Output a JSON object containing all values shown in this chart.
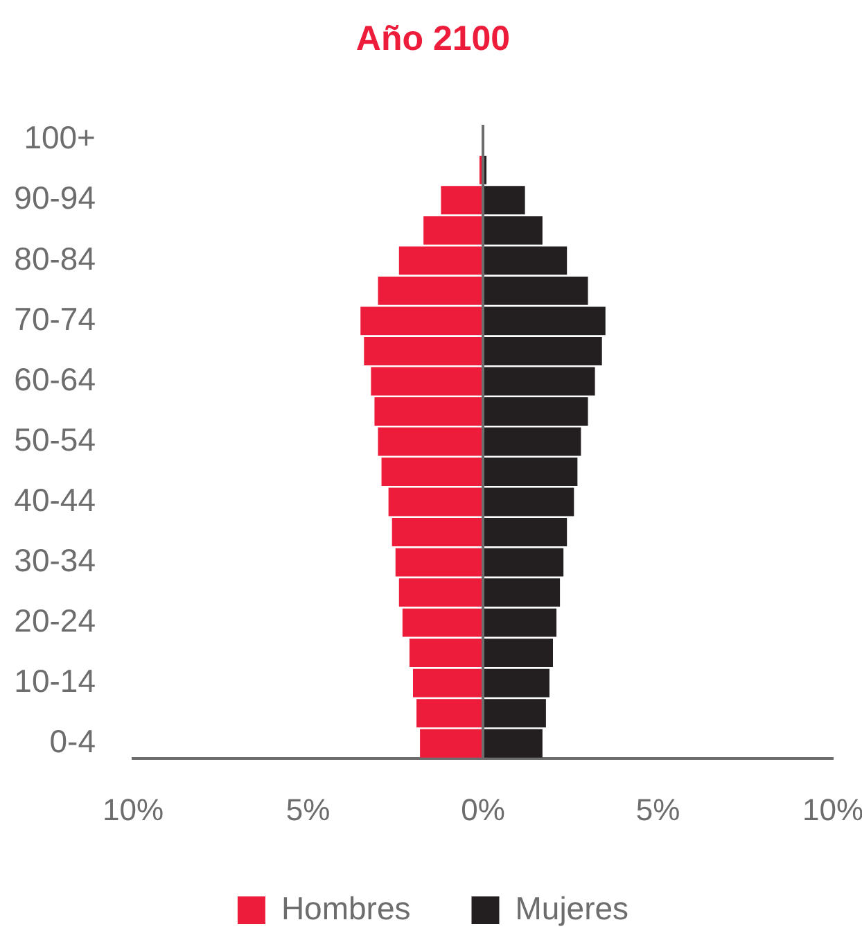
{
  "chart_data": {
    "type": "bar",
    "orientation": "horizontal",
    "stacked": true,
    "title": "Año 2100",
    "categories": [
      "100+",
      null,
      "90-94",
      null,
      "80-84",
      null,
      "70-74",
      null,
      "60-64",
      null,
      "50-54",
      null,
      "40-44",
      null,
      "30-34",
      null,
      "20-24",
      null,
      "10-14",
      null,
      "0-4"
    ],
    "series": [
      {
        "name": "Hombres",
        "color": "#ed1c3a",
        "values": [
          0,
          -0.1,
          -1.2,
          -1.7,
          -2.4,
          -3.0,
          -3.5,
          -3.4,
          -3.2,
          -3.1,
          -3.0,
          -2.9,
          -2.7,
          -2.6,
          -2.5,
          -2.4,
          -2.3,
          -2.1,
          -2.0,
          -1.9,
          -1.8
        ]
      },
      {
        "name": "Mujeres",
        "color": "#231f20",
        "values": [
          0,
          0.1,
          1.2,
          1.7,
          2.4,
          3.0,
          3.5,
          3.4,
          3.2,
          3.0,
          2.8,
          2.7,
          2.6,
          2.4,
          2.3,
          2.2,
          2.1,
          2.0,
          1.9,
          1.8,
          1.7
        ]
      }
    ],
    "xlim": [
      -10,
      10
    ],
    "xticks": [
      {
        "value": -10,
        "label": "10%"
      },
      {
        "value": -5,
        "label": "5%"
      },
      {
        "value": 0,
        "label": "0%"
      },
      {
        "value": 5,
        "label": "5%"
      },
      {
        "value": 10,
        "label": "10%"
      }
    ],
    "legend": "bottom"
  }
}
